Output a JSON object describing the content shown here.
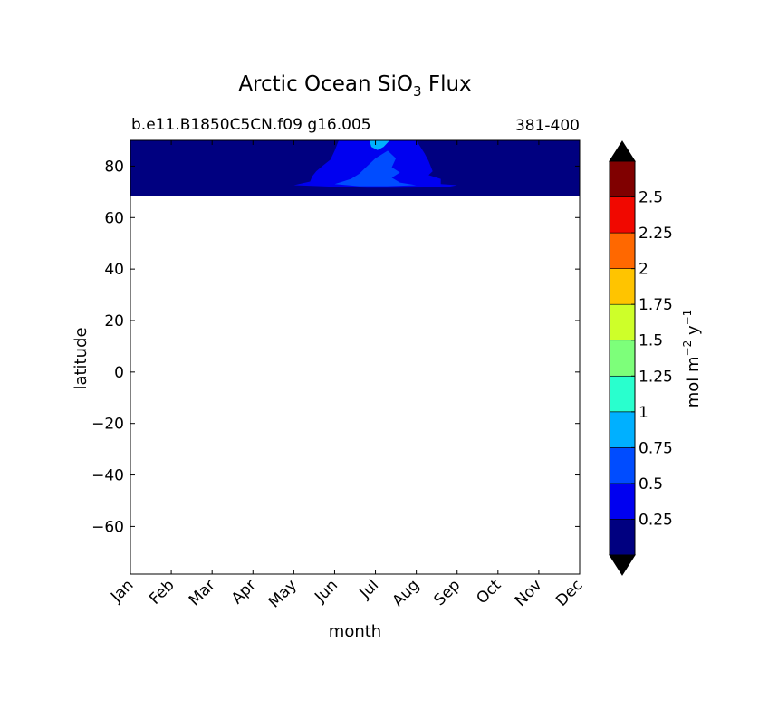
{
  "chart_data": {
    "type": "heatmap",
    "title": "Arctic Ocean SiO",
    "title_sub": "3",
    "title_suffix": " Flux",
    "subtitle_left": "b.e11.B1850C5CN.f09 g16.005",
    "subtitle_right": "381-400",
    "xlabel": "month",
    "ylabel": "latitude",
    "x_ticks": [
      "Jan",
      "Feb",
      "Mar",
      "Apr",
      "May",
      "Jun",
      "Jul",
      "Aug",
      "Sep",
      "Oct",
      "Nov",
      "Dec"
    ],
    "y_ticks": [
      80,
      60,
      40,
      20,
      0,
      -20,
      -40,
      -60
    ],
    "y_tick_labels": [
      "80",
      "60",
      "40",
      "20",
      "0",
      "−20",
      "−40",
      "−60"
    ],
    "xlim": [
      0,
      11
    ],
    "ylim": [
      -78.5,
      90
    ],
    "data_lat_range": [
      68.5,
      90
    ],
    "colorbar": {
      "label": "mol m",
      "label_sup1": "−2",
      "label_mid": " y",
      "label_sup2": "−1",
      "levels": [
        0,
        0.25,
        0.5,
        0.75,
        1.0,
        1.25,
        1.5,
        1.75,
        2.0,
        2.25,
        2.5,
        2.75
      ],
      "tick_labels": [
        "0.25",
        "0.5",
        "0.75",
        "1",
        "1.25",
        "1.5",
        "1.75",
        "2",
        "2.25",
        "2.5"
      ],
      "colors": [
        "#000080",
        "#0000f0",
        "#004cff",
        "#00b0ff",
        "#29ffce",
        "#7dff7a",
        "#ceff29",
        "#ffc400",
        "#ff6800",
        "#f10800",
        "#800000"
      ],
      "under_color": "#000000",
      "over_color": "#000000"
    },
    "contours": [
      {
        "level": 0.25,
        "color": "#0000f0",
        "points": [
          [
            4.0,
            72.6
          ],
          [
            4.3,
            72.4
          ],
          [
            5.0,
            72.0
          ],
          [
            5.8,
            71.6
          ],
          [
            6.5,
            71.6
          ],
          [
            7.2,
            71.7
          ],
          [
            7.8,
            72.0
          ],
          [
            8.0,
            72.6
          ],
          [
            7.6,
            73.0
          ],
          [
            7.6,
            75.0
          ],
          [
            7.3,
            76.5
          ],
          [
            7.4,
            78.0
          ],
          [
            7.3,
            82.0
          ],
          [
            7.2,
            85.0
          ],
          [
            7.0,
            90.0
          ],
          [
            5.1,
            90.0
          ],
          [
            5.0,
            86.0
          ],
          [
            4.9,
            82.5
          ],
          [
            4.7,
            80.0
          ],
          [
            4.55,
            78.0
          ],
          [
            4.45,
            76.0
          ],
          [
            4.4,
            74.0
          ]
        ]
      },
      {
        "level": 0.5,
        "color": "#004cff",
        "points": [
          [
            5.0,
            73.0
          ],
          [
            5.6,
            72.2
          ],
          [
            6.3,
            72.2
          ],
          [
            7.0,
            72.6
          ],
          [
            6.6,
            73.6
          ],
          [
            6.4,
            75.5
          ],
          [
            6.6,
            77.5
          ],
          [
            6.4,
            79.5
          ],
          [
            6.5,
            83.0
          ],
          [
            6.3,
            86.0
          ],
          [
            6.0,
            83.0
          ],
          [
            5.8,
            80.0
          ],
          [
            5.6,
            77.0
          ],
          [
            5.4,
            75.0
          ]
        ]
      },
      {
        "level": 0.75,
        "color": "#00b0ff",
        "points": [
          [
            5.85,
            90.0
          ],
          [
            5.9,
            87.5
          ],
          [
            6.05,
            86.2
          ],
          [
            6.2,
            87.5
          ],
          [
            6.35,
            90.0
          ]
        ]
      }
    ]
  }
}
